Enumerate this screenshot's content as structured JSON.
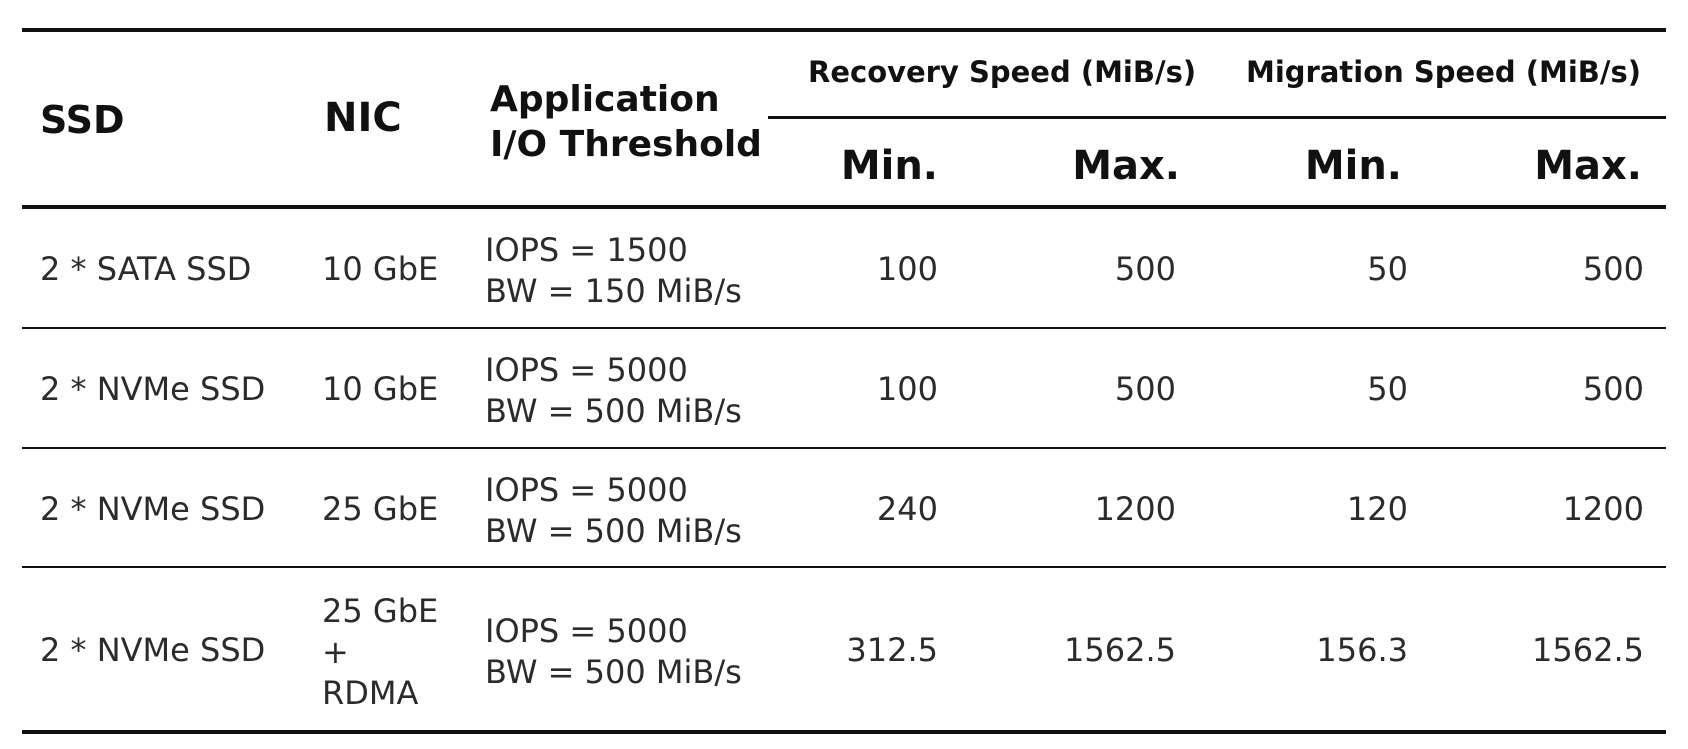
{
  "table": {
    "headers": {
      "ssd": "SSD",
      "nic": "NIC",
      "app_line1": "Application",
      "app_line2": "I/O Threshold",
      "recovery": "Recovery Speed (MiB/s)",
      "migration": "Migration Speed (MiB/s)",
      "rec_min": "Min.",
      "rec_max": "Max.",
      "mig_min": "Min.",
      "mig_max": "Max."
    },
    "rows": [
      {
        "ssd": "2 * SATA SSD",
        "nic": [
          "10 GbE"
        ],
        "iops": "IOPS = 1500",
        "bw": "BW = 150 MiB/s",
        "rec_min": "100",
        "rec_max": "500",
        "mig_min": "50",
        "mig_max": "500"
      },
      {
        "ssd": "2 * NVMe SSD",
        "nic": [
          "10 GbE"
        ],
        "iops": "IOPS = 5000",
        "bw": "BW = 500 MiB/s",
        "rec_min": "100",
        "rec_max": "500",
        "mig_min": "50",
        "mig_max": "500"
      },
      {
        "ssd": "2 * NVMe SSD",
        "nic": [
          "25 GbE"
        ],
        "iops": "IOPS = 5000",
        "bw": "BW = 500 MiB/s",
        "rec_min": "240",
        "rec_max": "1200",
        "mig_min": "120",
        "mig_max": "1200"
      },
      {
        "ssd": "2 * NVMe SSD",
        "nic": [
          "25 GbE",
          "+",
          "RDMA"
        ],
        "iops": "IOPS = 5000",
        "bw": "BW = 500 MiB/s",
        "rec_min": "312.5",
        "rec_max": "1562.5",
        "mig_min": "156.3",
        "mig_max": "1562.5"
      }
    ]
  }
}
